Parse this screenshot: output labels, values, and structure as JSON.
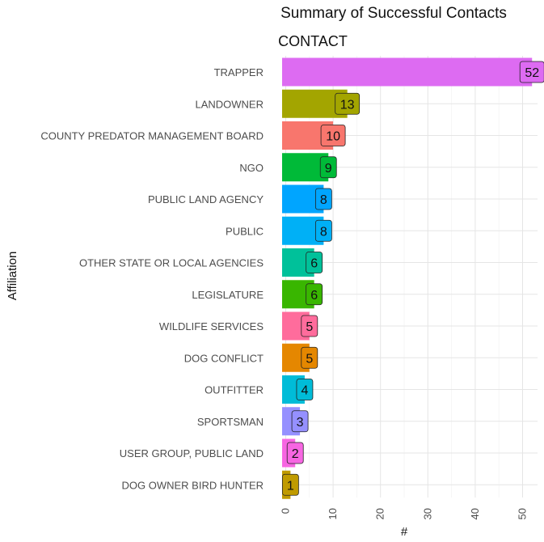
{
  "chart_data": {
    "type": "bar",
    "orientation": "horizontal",
    "title": "Summary of Successful Contacts",
    "facet_label": "CONTACT",
    "xlabel": "#",
    "ylabel": "Affiliation",
    "xlim": [
      0,
      54
    ],
    "xticks": [
      0,
      10,
      20,
      30,
      40,
      50
    ],
    "grid": true,
    "categories": [
      "TRAPPER",
      "LANDOWNER",
      "COUNTY PREDATOR MANAGEMENT BOARD",
      "NGO",
      "PUBLIC LAND AGENCY",
      "PUBLIC",
      "OTHER STATE OR LOCAL AGENCIES",
      "LEGISLATURE",
      "WILDLIFE SERVICES",
      "DOG CONFLICT",
      "OUTFITTER",
      "SPORTSMAN",
      "USER GROUP, PUBLIC LAND",
      "DOG OWNER BIRD HUNTER"
    ],
    "values": [
      52,
      13,
      10,
      9,
      8,
      8,
      6,
      6,
      5,
      5,
      4,
      3,
      2,
      1
    ],
    "colors": [
      "#dd6bf2",
      "#a3a500",
      "#f8766d",
      "#00ba38",
      "#00a5ff",
      "#00b0f6",
      "#00c19a",
      "#39b600",
      "#ff6c9c",
      "#e58700",
      "#00bcd8",
      "#9590ff",
      "#f766e2",
      "#c09b00"
    ]
  }
}
